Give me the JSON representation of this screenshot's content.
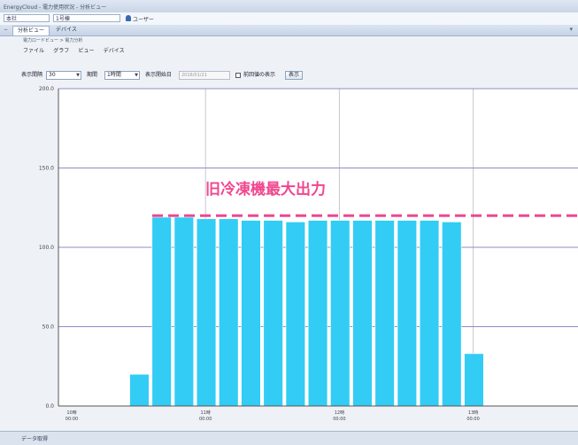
{
  "window": {
    "title": "EnergyCloud - 電力使用状況 - 分析ビュー"
  },
  "address": {
    "field1": "本社",
    "field2": "1号棟",
    "user": "ユーザー"
  },
  "tabs": [
    {
      "label": "分析ビュー",
      "active": true
    },
    {
      "label": "デバイス",
      "active": false
    }
  ],
  "breadcrumb": "電力ロードビュー > 電力分析",
  "menu": [
    "ファイル",
    "グラフ",
    "ビュー",
    "デバイス"
  ],
  "controls": {
    "interval_label": "表示間隔",
    "interval_value": "30",
    "period_label": "期間",
    "period_value": "1時間",
    "start_label": "表示開始日",
    "start_value": "2016/01/21",
    "checkbox_label": "前回値の表示",
    "display_button": "表示"
  },
  "annotation": {
    "text": "旧冷凍機最大出力",
    "color": "#f0478f",
    "level": 120
  },
  "colors": {
    "bar": "#33ccf5",
    "grid": "#8f8cc4",
    "vgrid": "#c7c7d0"
  },
  "chart_data": {
    "type": "bar",
    "title": "",
    "ylabel": "",
    "xlabel": "",
    "ylim": [
      0,
      200
    ],
    "yticks": [
      "0.0",
      "50.0",
      "100.0",
      "150.0",
      "200.0"
    ],
    "x_tick_labels": [
      {
        "line1": "10時",
        "line2": "00:00",
        "slot": 0
      },
      {
        "line1": "11時",
        "line2": "00:00",
        "slot": 6
      },
      {
        "line1": "12時",
        "line2": "00:00",
        "slot": 12
      },
      {
        "line1": "13時",
        "line2": "00:00",
        "slot": 18
      }
    ],
    "slot_count": 23,
    "values": [
      0,
      0,
      0,
      20,
      119,
      119,
      118,
      118,
      117,
      117,
      116,
      117,
      117,
      117,
      117,
      117,
      117,
      116,
      33,
      0,
      0,
      0,
      0
    ]
  },
  "status": {
    "text": "データ取得"
  }
}
